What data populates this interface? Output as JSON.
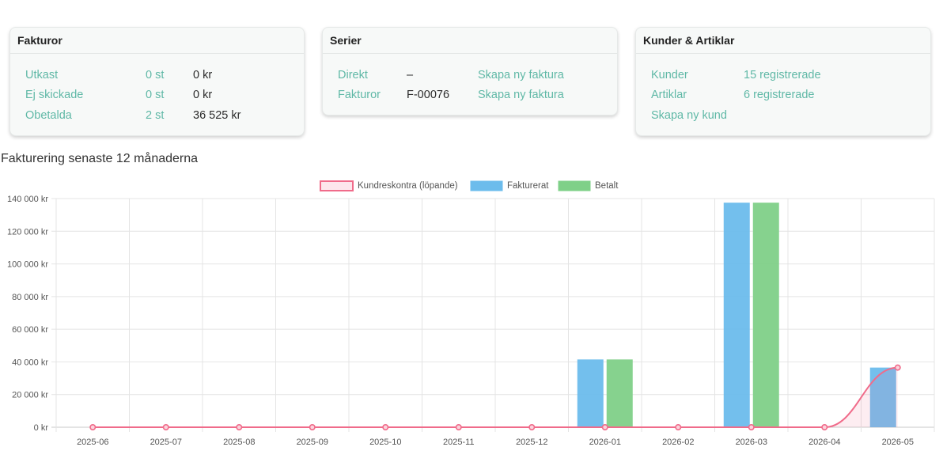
{
  "fakturor": {
    "title": "Fakturor",
    "rows": [
      {
        "label": "Utkast",
        "count": "0 st",
        "amount": "0 kr"
      },
      {
        "label": "Ej skickade",
        "count": "0 st",
        "amount": "0 kr"
      },
      {
        "label": "Obetalda",
        "count": "2 st",
        "amount": "36 525 kr"
      }
    ]
  },
  "serier": {
    "title": "Serier",
    "rows": [
      {
        "label": "Direkt",
        "value": "–",
        "action": "Skapa ny faktura"
      },
      {
        "label": "Fakturor",
        "value": "F-00076",
        "action": "Skapa ny faktura"
      }
    ]
  },
  "kunder": {
    "title": "Kunder & Artiklar",
    "rows": [
      {
        "label": "Kunder",
        "value": "15 registrerade"
      },
      {
        "label": "Artiklar",
        "value": "6 registrerade"
      }
    ],
    "create_label": "Skapa ny kund"
  },
  "chart_title": "Fakturering senaste 12 månaderna",
  "colors": {
    "kundreskontra": "#f06b8a",
    "fakturerat": "#6cbcec",
    "betalt": "#7fd088",
    "link": "#5fb8a6"
  },
  "chart_data": {
    "type": "bar",
    "categories": [
      "2025-06",
      "2025-07",
      "2025-08",
      "2025-09",
      "2025-10",
      "2025-11",
      "2025-12",
      "2026-01",
      "2026-02",
      "2026-03",
      "2026-04",
      "2026-05"
    ],
    "series": [
      {
        "name": "Kundreskontra (löpande)",
        "kind": "line",
        "values": [
          0,
          0,
          0,
          0,
          0,
          0,
          0,
          0,
          0,
          0,
          0,
          36525
        ]
      },
      {
        "name": "Fakturerat",
        "kind": "bar",
        "values": [
          0,
          0,
          0,
          0,
          0,
          0,
          0,
          41500,
          0,
          137500,
          0,
          36525
        ]
      },
      {
        "name": "Betalt",
        "kind": "bar",
        "values": [
          0,
          0,
          0,
          0,
          0,
          0,
          0,
          41500,
          0,
          137500,
          0,
          0
        ]
      }
    ],
    "y_ticks": [
      "0 kr",
      "20 000 kr",
      "40 000 kr",
      "60 000 kr",
      "80 000 kr",
      "100 000 kr",
      "120 000 kr",
      "140 000 kr"
    ],
    "ylim": [
      0,
      140000
    ],
    "legend_position": "top",
    "grid": true
  }
}
